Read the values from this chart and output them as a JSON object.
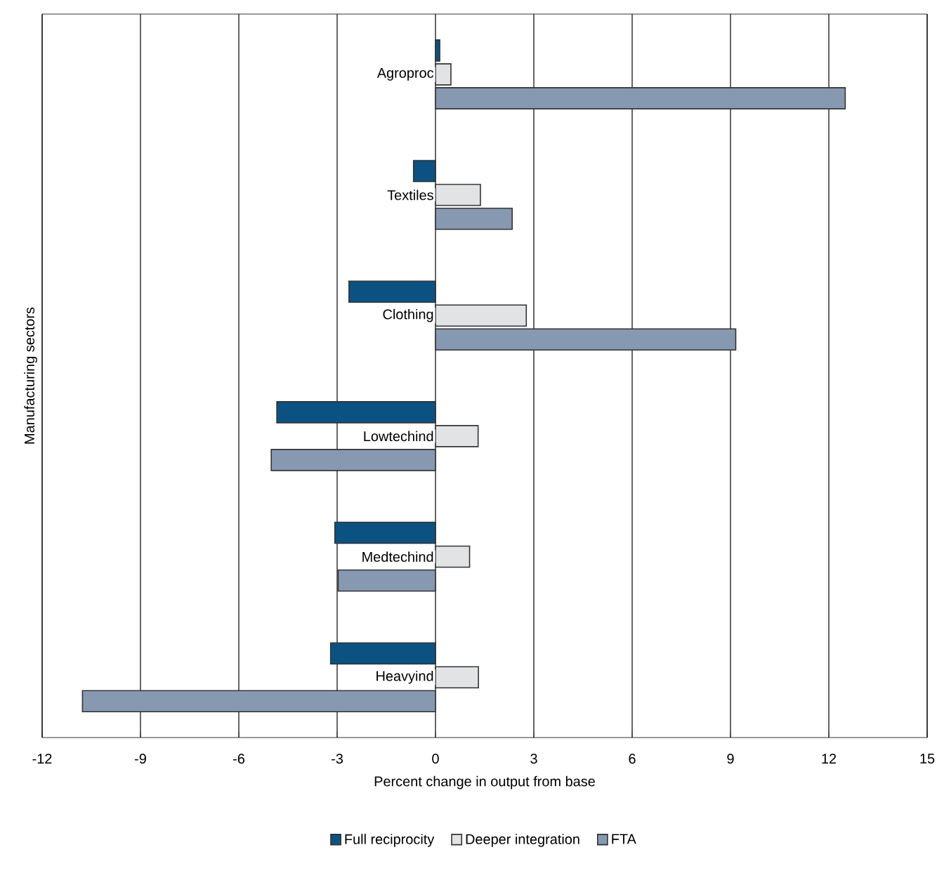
{
  "chart_data": {
    "type": "bar",
    "orientation": "horizontal",
    "xlabel": "Percent change in output from base",
    "ylabel": "Manufacturing sectors",
    "categories": [
      "Agroproc",
      "Textiles",
      "Clothing",
      "Lowtechind",
      "Medtechind",
      "Heavyind"
    ],
    "series": [
      {
        "name": "Full reciprocity",
        "color": "#0b5282",
        "values": [
          0.13,
          -0.67,
          -2.64,
          -4.84,
          -3.07,
          -3.2
        ]
      },
      {
        "name": "Deeper integration",
        "color": "#e2e3e5",
        "values": [
          0.47,
          1.37,
          2.77,
          1.3,
          1.04,
          1.31
        ]
      },
      {
        "name": "FTA",
        "color": "#8799b0",
        "values": [
          12.5,
          2.34,
          9.16,
          -5.01,
          -2.97,
          -10.77
        ]
      }
    ],
    "xlim": [
      -12,
      15
    ],
    "xticks": [
      -12,
      -9,
      -6,
      -3,
      0,
      3,
      6,
      9,
      12,
      15
    ],
    "grid": "x",
    "legend": "bottom"
  }
}
